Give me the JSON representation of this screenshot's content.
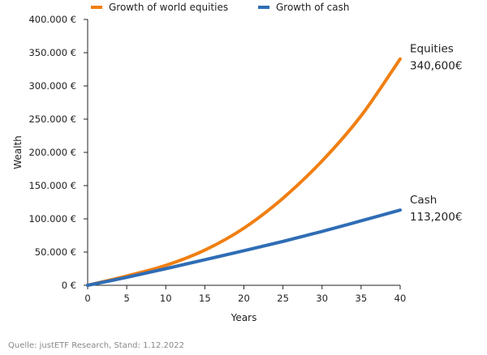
{
  "chart_data": {
    "type": "line",
    "title": "",
    "xlabel": "Years",
    "ylabel": "Wealth",
    "xlim": [
      0,
      40
    ],
    "ylim": [
      0,
      400000
    ],
    "x_ticks": [
      0,
      5,
      10,
      15,
      20,
      25,
      30,
      35,
      40
    ],
    "y_ticks": [
      0,
      50000,
      100000,
      150000,
      200000,
      250000,
      300000,
      350000,
      400000
    ],
    "x_tick_labels": [
      "0",
      "5",
      "10",
      "15",
      "20",
      "25",
      "30",
      "35",
      "40"
    ],
    "y_tick_labels": [
      "0 €",
      "50.000 €",
      "100.000 €",
      "150.000 €",
      "200.000 €",
      "250.000 €",
      "300.000 €",
      "350.000 €",
      "400.000 €"
    ],
    "legend_position": "top",
    "grid": false,
    "x": [
      0,
      5,
      10,
      15,
      20,
      25,
      30,
      35,
      40
    ],
    "series": [
      {
        "name": "Growth of world equities",
        "color": "#f07f12",
        "values": [
          0,
          14000,
          30000,
          53000,
          86000,
          131000,
          187000,
          255000,
          340600
        ],
        "end_label": [
          "Equities",
          "340,600€"
        ]
      },
      {
        "name": "Growth of cash",
        "color": "#2f6db5",
        "values": [
          0,
          12000,
          25000,
          38500,
          52000,
          66000,
          81000,
          97000,
          113200
        ],
        "end_label": [
          "Cash",
          "113,200€"
        ]
      }
    ]
  },
  "source_note": "Quelle: justETF Research, Stand: 1.12.2022"
}
